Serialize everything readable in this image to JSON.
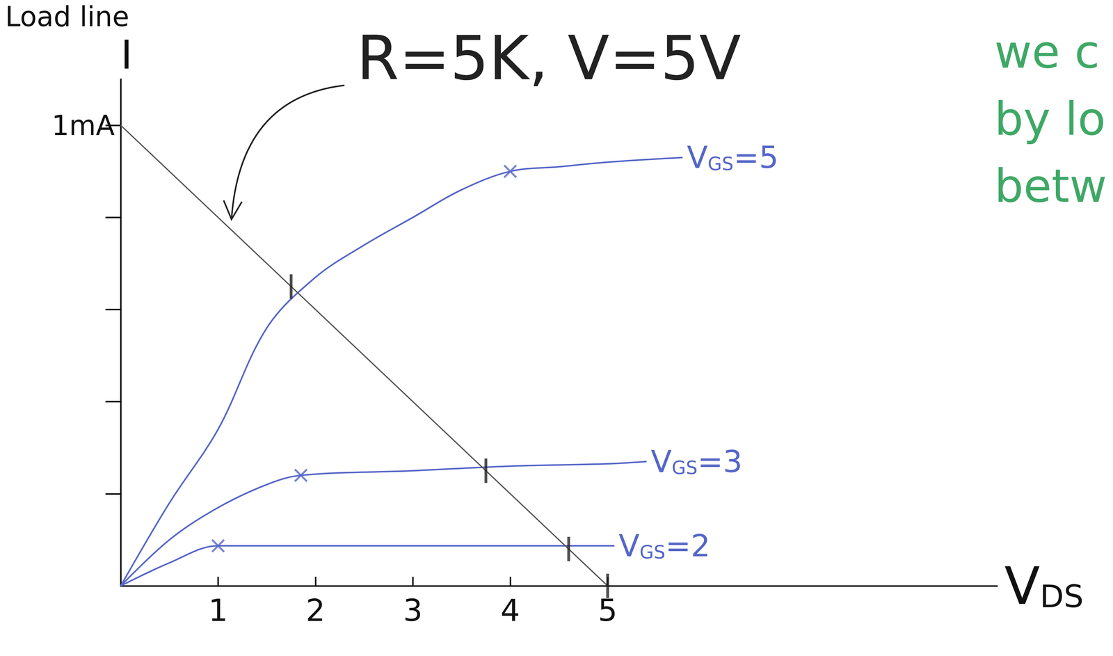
{
  "chart_data": {
    "type": "line",
    "title": "Load line",
    "annotation": "R=5K, V=5V",
    "note": [
      "we c",
      "by lo",
      "betw"
    ],
    "x_label": "VDS",
    "y_label": "I",
    "xlim": [
      0,
      9
    ],
    "xticks": [
      1,
      2,
      3,
      4,
      5
    ],
    "ylim": [
      0,
      1.1
    ],
    "yticks": [
      {
        "value": 1,
        "label": "1mA"
      }
    ],
    "y_minor_ticks": [
      0.2,
      0.4,
      0.6,
      0.8
    ],
    "grid": false,
    "series": [
      {
        "name": "VGS=5",
        "type": "line",
        "color": "#5566c8",
        "x": [
          0,
          0.5,
          1,
          1.5,
          2,
          2.5,
          3,
          3.5,
          4,
          4.5,
          5,
          5.77
        ],
        "values": [
          0,
          0.18,
          0.34,
          0.56,
          0.67,
          0.74,
          0.8,
          0.86,
          0.9,
          0.91,
          0.92,
          0.93
        ]
      },
      {
        "name": "VGS=3",
        "type": "line",
        "color": "#5566c8",
        "x": [
          0,
          0.5,
          1,
          1.5,
          1.85,
          3,
          4,
          5,
          5.4
        ],
        "values": [
          0,
          0.1,
          0.17,
          0.22,
          0.24,
          0.25,
          0.26,
          0.265,
          0.27
        ]
      },
      {
        "name": "VGS=2",
        "type": "line",
        "color": "#5566c8",
        "x": [
          0,
          0.5,
          1,
          3,
          5.07
        ],
        "values": [
          0,
          0.05,
          0.087,
          0.087,
          0.087
        ]
      },
      {
        "type": "line",
        "color": "#555555",
        "x": [
          0,
          5
        ],
        "values": [
          1,
          0
        ]
      },
      {
        "type": "scatter",
        "marker": "x",
        "color": "#5566c8",
        "x": [
          4,
          1.85,
          1
        ],
        "values": [
          0.9,
          0.24,
          0.087
        ]
      },
      {
        "type": "scatter",
        "marker": "tick",
        "color": "#222222",
        "x": [
          1.75,
          3.75,
          4.6,
          5
        ],
        "values": [
          0.65,
          0.25,
          0.08,
          0
        ]
      }
    ]
  }
}
